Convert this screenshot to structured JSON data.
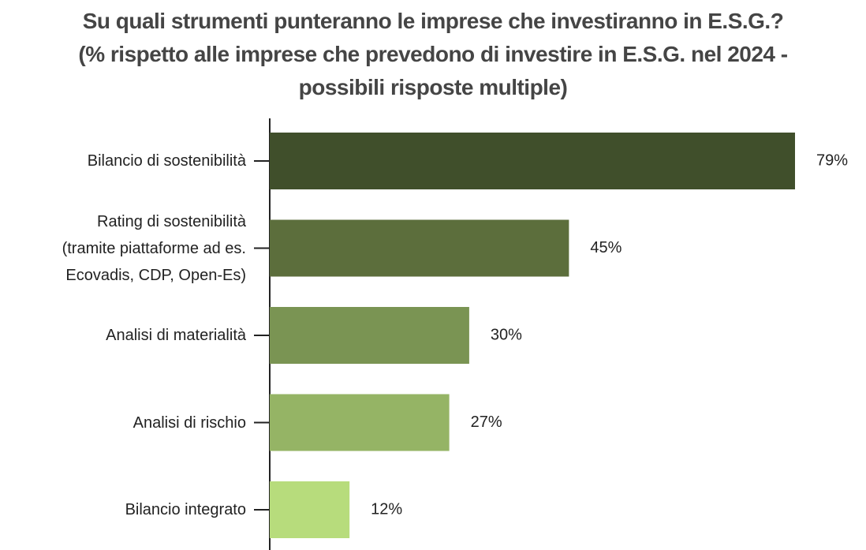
{
  "chart_data": {
    "type": "bar",
    "orientation": "horizontal",
    "title": "Su quali strumenti punteranno le imprese che investiranno in E.S.G.?\n(% rispetto alle imprese che prevedono di investire in E.S.G. nel 2024 -\npossibili risposte multiple)",
    "categories": [
      "Bilancio di sostenibilità",
      "Rating di sostenibilità\n(tramite piattaforme ad es.\nEcovadis, CDP, Open-Es)",
      "Analisi di materialità",
      "Analisi di rischio",
      "Bilancio integrato"
    ],
    "values": [
      79,
      45,
      30,
      27,
      12
    ],
    "value_labels": [
      "79%",
      "45%",
      "30%",
      "27%",
      "12%"
    ],
    "colors": [
      "#404f2b",
      "#5c6e3c",
      "#7a9453",
      "#95b465",
      "#b7dc7c"
    ]
  }
}
